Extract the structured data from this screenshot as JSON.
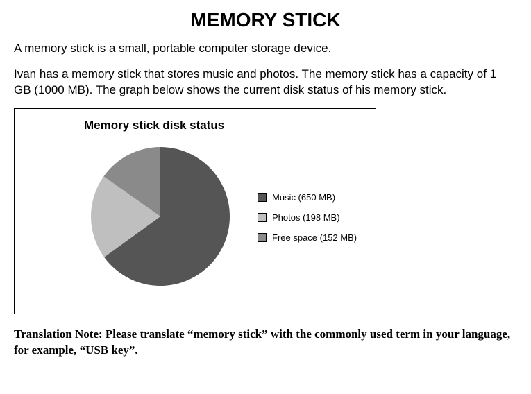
{
  "title": "MEMORY STICK",
  "paragraph1": "A memory stick is a small, portable computer storage device.",
  "paragraph2": "Ivan has a memory stick that stores music and photos. The memory stick has a capacity of 1 GB (1000 MB). The graph below shows the current disk status of his memory stick.",
  "translation_note": "Translation Note: Please translate “memory stick” with the commonly used term in your language, for example, “USB key”.",
  "chart": {
    "type": "pie",
    "title": "Memory stick disk status",
    "title_fontsize": 17,
    "title_fontweight": "bold",
    "background_color": "#ffffff",
    "border_color": "#000000",
    "pie_radius": 100,
    "start_angle_deg": -90,
    "slices": [
      {
        "label": "Music (650 MB)",
        "value": 650,
        "color": "#555555"
      },
      {
        "label": "Photos (198 MB)",
        "value": 198,
        "color": "#bfbfbf"
      },
      {
        "label": "Free space (152 MB)",
        "value": 152,
        "color": "#8a8a8a"
      }
    ],
    "legend": {
      "fontsize": 13,
      "swatch_size": 11,
      "swatch_border": "#000000",
      "position": "right"
    }
  }
}
